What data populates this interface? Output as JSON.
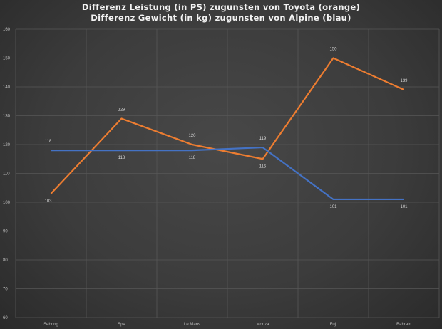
{
  "chart_data": {
    "type": "line",
    "title": "Differenz  Leistung  (in PS)  zugunsten  von Toyota  (orange)",
    "subtitle": "Differenz  Gewicht  (in kg)  zugunsten  von Alpine  (blau)",
    "categories": [
      "Sebring",
      "Spa",
      "Le Mans",
      "Monza",
      "Fuji",
      "Bahrain"
    ],
    "ylim": [
      60,
      160
    ],
    "yticks": [
      60,
      70,
      80,
      90,
      100,
      110,
      120,
      130,
      140,
      150,
      160
    ],
    "ytick_labels": [
      "60",
      "70",
      "80",
      "90",
      "100",
      "110",
      "120",
      "130",
      "140",
      "150",
      "160"
    ],
    "grid": true,
    "series": [
      {
        "color": "#ed7d31",
        "values": [
          103,
          129,
          120,
          115,
          150,
          139
        ],
        "labels": [
          "103",
          "129",
          "120",
          "115",
          "150",
          "139"
        ]
      },
      {
        "color": "#4472c4",
        "values": [
          118,
          118,
          118,
          119,
          101,
          101
        ],
        "labels": [
          "118",
          "118",
          "118",
          "119",
          "101",
          "101"
        ]
      }
    ]
  }
}
